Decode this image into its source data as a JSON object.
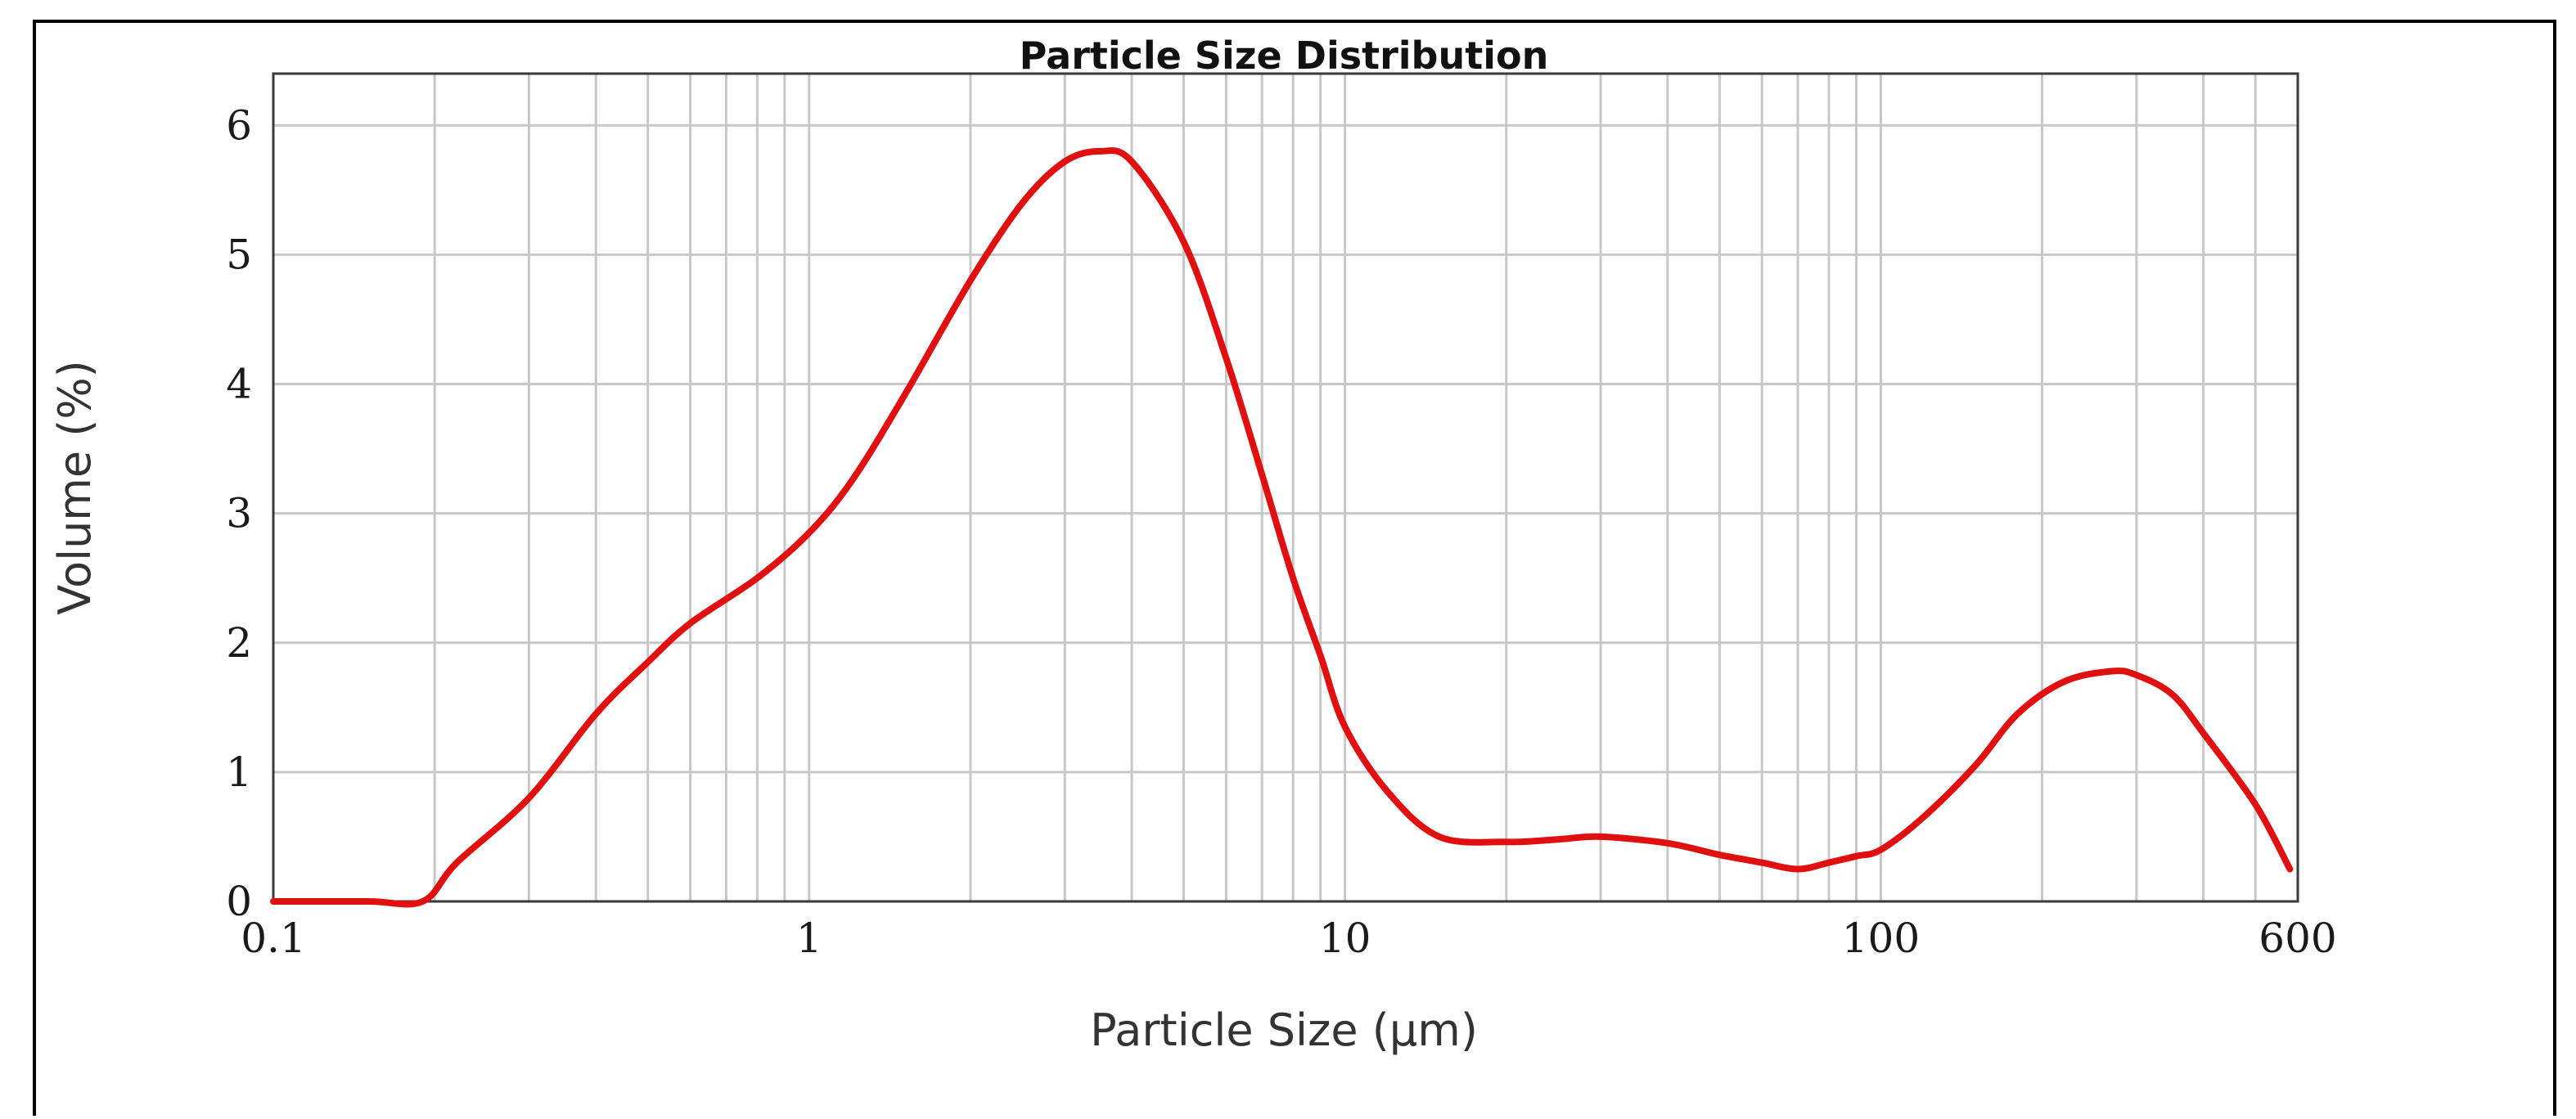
{
  "chart_data": {
    "type": "line",
    "title": "Particle Size Distribution",
    "xlabel": "Particle Size (µm)",
    "ylabel": "Volume (%)",
    "x_scale": "log",
    "xlim": [
      0.1,
      600
    ],
    "ylim": [
      0,
      6.4
    ],
    "x_ticks": [
      {
        "value": 0.1,
        "label": "0.1"
      },
      {
        "value": 1,
        "label": "1"
      },
      {
        "value": 10,
        "label": "10"
      },
      {
        "value": 100,
        "label": "100"
      },
      {
        "value": 600,
        "label": "600"
      }
    ],
    "y_ticks": [
      0,
      1,
      2,
      3,
      4,
      5,
      6
    ],
    "grid": true,
    "series": [
      {
        "color": "#e01010",
        "x": [
          0.1,
          0.15,
          0.19,
          0.22,
          0.3,
          0.4,
          0.5,
          0.6,
          0.8,
          1.0,
          1.2,
          1.5,
          2.0,
          2.5,
          3.0,
          3.5,
          4.0,
          5.0,
          6.0,
          7.0,
          8.0,
          9.0,
          10,
          12,
          15,
          20,
          25,
          30,
          40,
          50,
          60,
          70,
          80,
          90,
          100,
          120,
          150,
          180,
          220,
          270,
          300,
          350,
          400,
          500,
          580
        ],
        "y": [
          0,
          0,
          0,
          0.3,
          0.8,
          1.45,
          1.85,
          2.15,
          2.5,
          2.85,
          3.25,
          3.9,
          4.8,
          5.4,
          5.72,
          5.8,
          5.72,
          5.1,
          4.2,
          3.3,
          2.5,
          1.9,
          1.35,
          0.85,
          0.5,
          0.46,
          0.48,
          0.5,
          0.45,
          0.36,
          0.3,
          0.25,
          0.3,
          0.35,
          0.4,
          0.65,
          1.05,
          1.45,
          1.7,
          1.78,
          1.75,
          1.6,
          1.3,
          0.75,
          0.25
        ]
      }
    ]
  }
}
